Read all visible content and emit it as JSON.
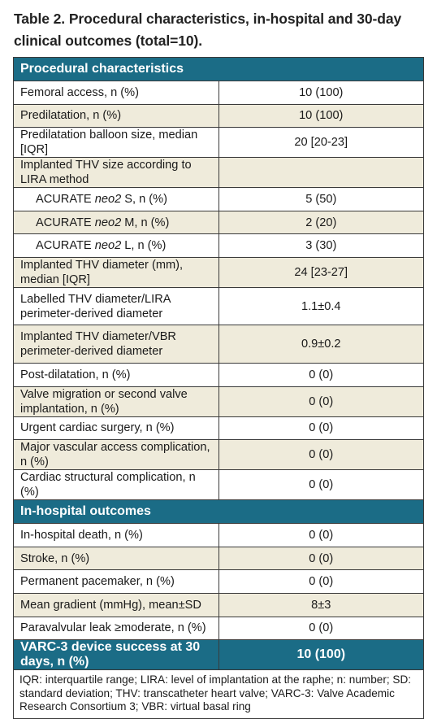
{
  "title_line1": "Table 2. Procedural characteristics, in-hospital and 30-day",
  "title_line2": "clinical outcomes (total=10).",
  "sections": [
    {
      "heading": "Procedural characteristics",
      "rows": [
        {
          "label": "Femoral access, n (%)",
          "value": "10 (100)"
        },
        {
          "label": "Predilatation, n (%)",
          "value": "10 (100)"
        },
        {
          "label": "Predilatation balloon size, median [IQR]",
          "value": "20 [20-23]"
        },
        {
          "label": "Implanted THV size according to LIRA method",
          "value": ""
        },
        {
          "label_pre": "ACURATE ",
          "label_em": "neo2",
          "label_post": " S, n (%)",
          "value": "5 (50)"
        },
        {
          "label_pre": "ACURATE ",
          "label_em": "neo2",
          "label_post": " M, n (%)",
          "value": "2 (20)"
        },
        {
          "label_pre": "ACURATE ",
          "label_em": "neo2",
          "label_post": " L, n (%)",
          "value": "3 (30)"
        },
        {
          "label": "Implanted THV diameter (mm), median [IQR]",
          "value": "24 [23-27]"
        },
        {
          "label": "Labelled THV diameter/LIRA perimeter-derived diameter",
          "value": "1.1±0.4"
        },
        {
          "label": "Implanted THV diameter/VBR perimeter-derived diameter",
          "value": "0.9±0.2"
        },
        {
          "label": "Post-dilatation, n (%)",
          "value": "0 (0)"
        },
        {
          "label": "Valve migration or second valve implantation, n (%)",
          "value": "0 (0)"
        },
        {
          "label": "Urgent cardiac surgery, n (%)",
          "value": "0 (0)"
        },
        {
          "label": "Major vascular access complication, n (%)",
          "value": "0 (0)"
        },
        {
          "label": "Cardiac structural complication, n (%)",
          "value": "0 (0)"
        }
      ]
    },
    {
      "heading": "In-hospital outcomes",
      "rows": [
        {
          "label": "In-hospital death, n (%)",
          "value": "0 (0)"
        },
        {
          "label": "Stroke, n (%)",
          "value": "0 (0)"
        },
        {
          "label": "Permanent pacemaker, n (%)",
          "value": "0 (0)"
        },
        {
          "label": "Mean gradient (mmHg), mean±SD",
          "value": "8±3"
        },
        {
          "label": "Paravalvular leak ≥moderate, n (%)",
          "value": "0 (0)"
        }
      ]
    }
  ],
  "success_row": {
    "label": "VARC-3 device success at 30 days, n (%)",
    "value": "10 (100)"
  },
  "footnote": "IQR: interquartile range; LIRA: level of implantation at the raphe; n: number; SD: standard deviation; THV: transcatheter heart valve; VARC-3: Valve Academic Research Consortium 3; VBR: virtual basal ring",
  "colors": {
    "header_teal": "#1b6c86",
    "row_shade": "#efebdb",
    "row_white": "#ffffff"
  }
}
